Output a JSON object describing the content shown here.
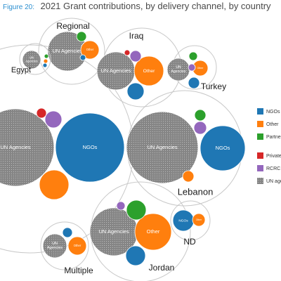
{
  "figure_label": "Figure 20:",
  "chart_data": {
    "type": "bubble",
    "title": "2021 Grant contributions, by delivery channel, by country",
    "groups": [
      {
        "name": "",
        "bubbles": [
          {
            "channel": "UN agencies",
            "label": "UN Agencies"
          },
          {
            "channel": "NGOs",
            "label": "NGOs"
          },
          {
            "channel": "Private sector"
          },
          {
            "channel": "RCRC"
          },
          {
            "channel": "Other"
          }
        ]
      },
      {
        "name": "Lebanon",
        "bubbles": [
          {
            "channel": "UN agencies",
            "label": "UN Agencies"
          },
          {
            "channel": "NGOs",
            "label": "NGOs"
          },
          {
            "channel": "Partner governments"
          },
          {
            "channel": "RCRC"
          },
          {
            "channel": "Other"
          }
        ]
      },
      {
        "name": "Regional",
        "bubbles": [
          {
            "channel": "UN agencies",
            "label": "UN Agencies"
          },
          {
            "channel": "Other",
            "label": "Other"
          },
          {
            "channel": "Partner governments"
          },
          {
            "channel": "NGOs"
          }
        ]
      },
      {
        "name": "Iraq",
        "bubbles": [
          {
            "channel": "UN agencies",
            "label": "UN Agencies"
          },
          {
            "channel": "Other",
            "label": "Other"
          },
          {
            "channel": "NGOs"
          },
          {
            "channel": "RCRC"
          },
          {
            "channel": "Private sector"
          }
        ]
      },
      {
        "name": "Egypt",
        "bubbles": [
          {
            "channel": "UN agencies",
            "label": "UN Agencies"
          },
          {
            "channel": "Partner governments"
          },
          {
            "channel": "Other"
          },
          {
            "channel": "NGOs"
          }
        ]
      },
      {
        "name": "Turkey",
        "bubbles": [
          {
            "channel": "UN agencies",
            "label": "UN Agencies"
          },
          {
            "channel": "Other",
            "label": "Other"
          },
          {
            "channel": "NGOs"
          },
          {
            "channel": "Partner governments"
          },
          {
            "channel": "RCRC"
          }
        ]
      },
      {
        "name": "Jordan",
        "bubbles": [
          {
            "channel": "UN agencies",
            "label": "UN Agencies"
          },
          {
            "channel": "Other",
            "label": "Other"
          },
          {
            "channel": "Partner governments"
          },
          {
            "channel": "NGOs"
          },
          {
            "channel": "RCRC"
          }
        ]
      },
      {
        "name": "ND",
        "bubbles": [
          {
            "channel": "NGOs",
            "label": "NGOs"
          },
          {
            "channel": "Other",
            "label": "Other"
          }
        ]
      },
      {
        "name": "Multiple",
        "bubbles": [
          {
            "channel": "UN agencies",
            "label": "UN Agencies"
          },
          {
            "channel": "Other",
            "label": "Other"
          },
          {
            "channel": "NGOs"
          }
        ]
      }
    ],
    "legend": [
      {
        "label": "NGOs",
        "color": "#1f77b4"
      },
      {
        "label": "Other",
        "color": "#ff7f0e"
      },
      {
        "label": "Partner governments",
        "color": "#2ca02c"
      },
      {
        "label": "Private sector",
        "color": "#d62728"
      },
      {
        "label": "RCRC",
        "color": "#9467bd"
      },
      {
        "label": "UN agencies",
        "color": "#808080"
      }
    ],
    "legend_position": "right",
    "channel_colors": {
      "NGOs": "#1f77b4",
      "Other": "#ff7f0e",
      "Partner governments": "#2ca02c",
      "Private sector": "#d62728",
      "RCRC": "#9467bd",
      "UN agencies": "#808080"
    }
  }
}
